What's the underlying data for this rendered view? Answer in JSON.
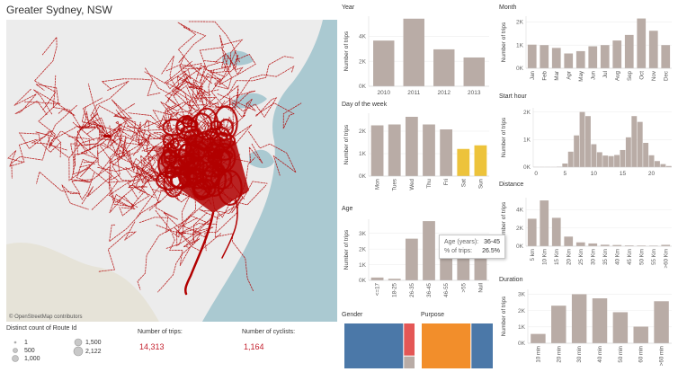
{
  "title": "Greater Sydney, NSW",
  "map": {
    "attribution": "© OpenStreetMap contributors"
  },
  "legend": {
    "title": "Distinct count of Route Id",
    "items": [
      "1",
      "500",
      "1,000",
      "1,500",
      "2,122"
    ]
  },
  "kpis": [
    {
      "label": "Number of trips:",
      "value": "14,313"
    },
    {
      "label": "Number of cyclists:",
      "value": "1,164"
    }
  ],
  "colors": {
    "bar": "#b9aca6",
    "highlight": "#edc33b",
    "route": "#b20000",
    "gender_male": "#4b78a8",
    "gender_female": "#e45756",
    "gender_other": "#b9aca6",
    "purpose_a": "#f28e2b",
    "purpose_b": "#4b78a8",
    "accent_text": "#c4202e"
  },
  "tooltip": {
    "label1": "Age (years):",
    "value1": "36-45",
    "label2": "% of trips:",
    "value2": "26.5%"
  },
  "chart_data": [
    {
      "id": "year",
      "type": "bar",
      "title": "Year",
      "ylabel": "Number of trips",
      "categories": [
        "2010",
        "2011",
        "2012",
        "2013"
      ],
      "values": [
        3650,
        5400,
        2950,
        2300
      ],
      "yticks": [
        "0K",
        "2K",
        "4K"
      ],
      "ylim": [
        0,
        5600
      ]
    },
    {
      "id": "month",
      "type": "bar",
      "title": "Month",
      "ylabel": "Number of trips",
      "categories": [
        "Jan",
        "Feb",
        "Mar",
        "Apr",
        "May",
        "Jun",
        "Jul",
        "Aug",
        "Sep",
        "Oct",
        "Nov",
        "Dec"
      ],
      "values": [
        1020,
        1000,
        880,
        640,
        740,
        950,
        1000,
        1200,
        1440,
        2150,
        1620,
        1000
      ],
      "yticks": [
        "0K",
        "1K",
        "2K"
      ],
      "ylim": [
        0,
        2250
      ]
    },
    {
      "id": "dow",
      "type": "bar",
      "title": "Day of the week",
      "ylabel": "Number of trips",
      "categories": [
        "Mon",
        "Tues",
        "Wed",
        "Thu",
        "Fri",
        "Sat",
        "Sun"
      ],
      "values": [
        2260,
        2300,
        2640,
        2300,
        2080,
        1210,
        1370
      ],
      "highlight": [
        "Sat",
        "Sun"
      ],
      "yticks": [
        "0K",
        "1K",
        "2K"
      ],
      "ylim": [
        0,
        2800
      ]
    },
    {
      "id": "hour",
      "type": "bar",
      "title": "Start hour",
      "ylabel": "Number of trips",
      "categories": [
        "0",
        "1",
        "2",
        "3",
        "4",
        "5",
        "6",
        "7",
        "8",
        "9",
        "10",
        "11",
        "12",
        "13",
        "14",
        "15",
        "16",
        "17",
        "18",
        "19",
        "20",
        "21",
        "22",
        "23"
      ],
      "values": [
        5,
        5,
        5,
        5,
        15,
        130,
        560,
        1150,
        2000,
        1850,
        830,
        540,
        420,
        400,
        440,
        620,
        1080,
        1850,
        1640,
        880,
        430,
        220,
        110,
        40
      ],
      "xticks": [
        "0",
        "5",
        "10",
        "15",
        "20"
      ],
      "yticks": [
        "0K",
        "1K",
        "2K"
      ],
      "ylim": [
        0,
        2150
      ]
    },
    {
      "id": "age",
      "type": "bar",
      "title": "Age",
      "ylabel": "Number of trips",
      "categories": [
        "<=17",
        "18-25",
        "26-35",
        "36-45",
        "46-55",
        ">55",
        "Null"
      ],
      "values": [
        180,
        100,
        2660,
        3780,
        2700,
        2050,
        2840
      ],
      "yticks": [
        "0K",
        "1K",
        "2K",
        "3K"
      ],
      "ylim": [
        0,
        3900
      ]
    },
    {
      "id": "distance",
      "type": "bar",
      "title": "Distance",
      "ylabel": "Number of trips",
      "categories": [
        "5 km",
        "10 Km",
        "15 Km",
        "20 Km",
        "25 Km",
        "30 Km",
        "35 Km",
        "40 Km",
        "45 Km",
        "50 Km",
        "55 Km",
        ">60 Km"
      ],
      "values": [
        3000,
        5000,
        3100,
        1050,
        420,
        300,
        160,
        130,
        80,
        70,
        60,
        150
      ],
      "yticks": [
        "0K",
        "2K",
        "4K"
      ],
      "ylim": [
        0,
        5300
      ]
    },
    {
      "id": "duration",
      "type": "bar",
      "title": "Duration",
      "ylabel": "Number of trips",
      "categories": [
        "10 min",
        "20 min",
        "30 min",
        "40 min",
        "50 min",
        "60 min",
        ">60 min"
      ],
      "values": [
        570,
        2300,
        3000,
        2750,
        1900,
        1020,
        2570
      ],
      "yticks": [
        "0K",
        "1K",
        "2K",
        "3K"
      ],
      "ylim": [
        0,
        3300
      ]
    }
  ],
  "gender": {
    "title": "Gender",
    "values": [
      0.85,
      0.11,
      0.04
    ]
  },
  "purpose": {
    "title": "Purpose",
    "values": [
      0.7,
      0.3
    ]
  }
}
